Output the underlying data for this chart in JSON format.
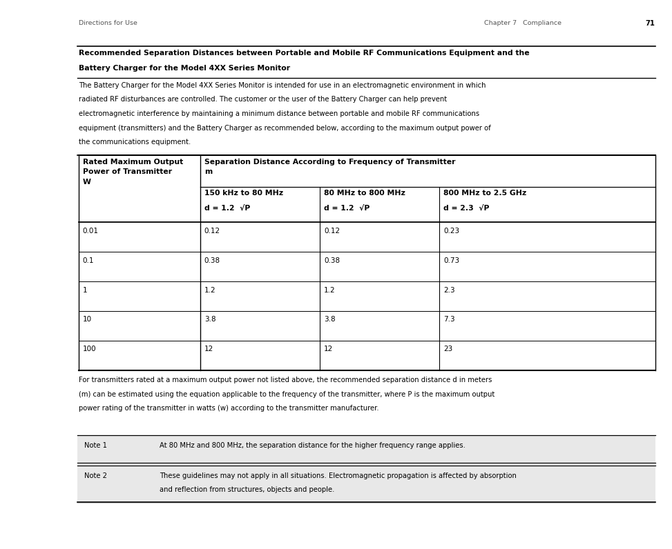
{
  "page_header_left": "Directions for Use",
  "page_header_right": "Chapter 7   Compliance",
  "page_number": "71",
  "section_title_line1": "Recommended Separation Distances between Portable and Mobile RF Communications Equipment and the",
  "section_title_line2": "Battery Charger for the Model 4XX Series Monitor",
  "intro_text": "The Battery Charger for the Model 4XX Series Monitor is intended for use in an electromagnetic environment in which\nradiated RF disturbances are controlled. The customer or the user of the Battery Charger can help prevent\nelectromagnetic interference by maintaining a minimum distance between portable and mobile RF communications\nequipment (transmitters) and the Battery Charger as recommended below, according to the maximum output power of\nthe communications equipment.",
  "table_col0_header": "Rated Maximum Output\nPower of Transmitter\nW",
  "table_col1_header": "Separation Distance According to Frequency of Transmitter\nm",
  "table_col1a_header": "150 kHz to 80 MHz",
  "table_col1a_formula": "d = 1.2  √P",
  "table_col1b_header": "80 MHz to 800 MHz",
  "table_col1b_formula": "d = 1.2  √P",
  "table_col1c_header": "800 MHz to 2.5 GHz",
  "table_col1c_formula": "d = 2.3  √P",
  "table_rows": [
    [
      "0.01",
      "0.12",
      "0.12",
      "0.23"
    ],
    [
      "0.1",
      "0.38",
      "0.38",
      "0.73"
    ],
    [
      "1",
      "1.2",
      "1.2",
      "2.3"
    ],
    [
      "10",
      "3.8",
      "3.8",
      "7.3"
    ],
    [
      "100",
      "12",
      "12",
      "23"
    ]
  ],
  "footer_line1": "For transmitters rated at a maximum output power not listed above, the recommended separation distance d in meters",
  "footer_line2": "(m) can be estimated using the equation applicable to the frequency of the transmitter, where P is the maximum output",
  "footer_line3": "power rating of the transmitter in watts (w) according to the transmitter manufacturer.",
  "note1_label": "Note 1",
  "note1_text": "At 80 MHz and 800 MHz, the separation distance for the higher frequency range applies.",
  "note2_label": "Note 2",
  "note2_text": "These guidelines may not apply in all situations. Electromagnetic propagation is affected by absorption\nand reflection from structures, objects and people.",
  "bg_color": "#ffffff",
  "note_bg_color": "#e8e8e8"
}
